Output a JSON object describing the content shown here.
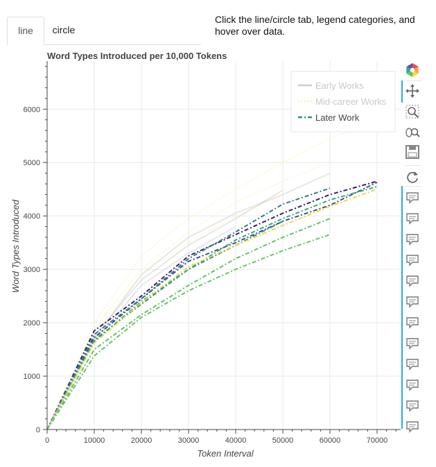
{
  "tabs": [
    {
      "label": "line",
      "active": true
    },
    {
      "label": "circle",
      "active": false
    }
  ],
  "instructions": "Click the line/circle tab, legend categories, and hover over data.",
  "chart_data": {
    "type": "line",
    "title": "Word Types Introduced per 10,000 Tokens",
    "xlabel": "Token Interval",
    "ylabel": "Word Types Introduced",
    "xlim": [
      0,
      75000
    ],
    "ylim": [
      0,
      6900
    ],
    "xticks": [
      0,
      10000,
      20000,
      30000,
      40000,
      50000,
      60000,
      70000
    ],
    "yticks": [
      0,
      1000,
      2000,
      3000,
      4000,
      5000,
      6000
    ],
    "grid": true,
    "legend_position": "top-right",
    "legend": [
      {
        "label": "Early Works",
        "style": "solid",
        "muted": true
      },
      {
        "label": "Mid-career Works",
        "style": "dotted",
        "muted": true
      },
      {
        "label": "Later Work",
        "style": "dashdot",
        "muted": false
      }
    ],
    "series": [
      {
        "group": "Early Works",
        "color": "#bbbbbb",
        "dash": "solid",
        "opacity": 0.35,
        "x": [
          0,
          10000,
          20000,
          30000,
          40000,
          50000
        ],
        "y": [
          0,
          1750,
          2800,
          3450,
          3950,
          4480
        ]
      },
      {
        "group": "Early Works",
        "color": "#bbbbbb",
        "dash": "solid",
        "opacity": 0.35,
        "x": [
          0,
          10000,
          20000,
          30000,
          40000,
          50000,
          60000
        ],
        "y": [
          0,
          1700,
          2900,
          3600,
          4050,
          4400,
          4800
        ]
      },
      {
        "group": "Early Works",
        "color": "#bbbbbb",
        "dash": "solid",
        "opacity": 0.35,
        "x": [
          0,
          10000,
          20000,
          30000,
          40000
        ],
        "y": [
          0,
          1650,
          2700,
          3300,
          3800
        ]
      },
      {
        "group": "Mid-career Works",
        "color": "#f4ee9e",
        "dash": "dotted",
        "opacity": 0.6,
        "x": [
          0,
          10000,
          20000,
          30000,
          40000,
          50000,
          60000,
          70000
        ],
        "y": [
          0,
          2000,
          3250,
          3950,
          4500,
          5000,
          5450,
          5800
        ]
      },
      {
        "group": "Mid-career Works",
        "color": "#f4ee9e",
        "dash": "dotted",
        "opacity": 0.6,
        "x": [
          0,
          10000,
          20000,
          30000,
          40000,
          50000,
          60000
        ],
        "y": [
          0,
          1900,
          3000,
          3700,
          4250,
          4650,
          5000
        ]
      },
      {
        "group": "Mid-career Works",
        "color": "#f4ee9e",
        "dash": "dotted",
        "opacity": 0.6,
        "x": [
          0,
          10000,
          20000,
          30000,
          40000,
          50000
        ],
        "y": [
          0,
          1800,
          2900,
          3500,
          4000,
          4400
        ]
      },
      {
        "group": "Later Work",
        "color": "#3b1c6e",
        "dash": "dashdot",
        "opacity": 1,
        "x": [
          0,
          10000,
          20000,
          30000,
          40000,
          50000,
          60000,
          70000
        ],
        "y": [
          0,
          1850,
          2500,
          3250,
          3650,
          4050,
          4400,
          4650
        ]
      },
      {
        "group": "Later Work",
        "color": "#3a4f8e",
        "dash": "dashdot",
        "opacity": 1,
        "x": [
          0,
          10000,
          20000,
          30000,
          40000,
          50000,
          60000,
          70000
        ],
        "y": [
          0,
          1720,
          2450,
          3150,
          3500,
          3900,
          4200,
          4630
        ]
      },
      {
        "group": "Later Work",
        "color": "#2f7b8c",
        "dash": "dashdot",
        "opacity": 1,
        "x": [
          0,
          10000,
          20000,
          30000,
          40000,
          50000,
          60000
        ],
        "y": [
          0,
          1780,
          2450,
          3200,
          3700,
          4220,
          4520
        ]
      },
      {
        "group": "Later Work",
        "color": "#2a8f86",
        "dash": "dashdot",
        "opacity": 1,
        "x": [
          0,
          10000,
          20000,
          30000,
          40000,
          50000
        ],
        "y": [
          0,
          1680,
          2350,
          3000,
          3450,
          3900
        ]
      },
      {
        "group": "Later Work",
        "color": "#35a87d",
        "dash": "dashdot",
        "opacity": 1,
        "x": [
          0,
          10000,
          20000,
          30000,
          40000,
          50000,
          60000,
          70000
        ],
        "y": [
          0,
          1650,
          2400,
          3000,
          3550,
          3950,
          4300,
          4550
        ]
      },
      {
        "group": "Later Work",
        "color": "#f2d43c",
        "dash": "dashdot",
        "opacity": 1,
        "x": [
          0,
          10000,
          20000,
          30000,
          40000,
          50000,
          60000,
          70000
        ],
        "y": [
          0,
          1620,
          2380,
          3050,
          3450,
          3820,
          4180,
          4500
        ]
      },
      {
        "group": "Later Work",
        "color": "#5ec267",
        "dash": "dashdot",
        "opacity": 1,
        "x": [
          0,
          10000,
          20000,
          30000,
          40000,
          50000,
          60000
        ],
        "y": [
          0,
          1500,
          2150,
          2700,
          3200,
          3600,
          3950
        ]
      },
      {
        "group": "Later Work",
        "color": "#64c65f",
        "dash": "dashdot",
        "opacity": 1,
        "x": [
          0,
          10000,
          20000,
          30000,
          40000,
          50000,
          60000
        ],
        "y": [
          0,
          1380,
          2100,
          2600,
          3000,
          3350,
          3650
        ]
      }
    ]
  },
  "toolbar": {
    "tools": [
      "bokeh-logo-icon",
      "pan-icon",
      "box-zoom-icon",
      "wheel-zoom-icon",
      "save-icon",
      "reset-icon",
      "hover-icon",
      "hover-icon",
      "hover-icon",
      "hover-icon",
      "hover-icon",
      "hover-icon",
      "hover-icon",
      "hover-icon",
      "hover-icon",
      "hover-icon",
      "hover-icon",
      "hover-icon"
    ],
    "accent_color": "#26aae1"
  }
}
